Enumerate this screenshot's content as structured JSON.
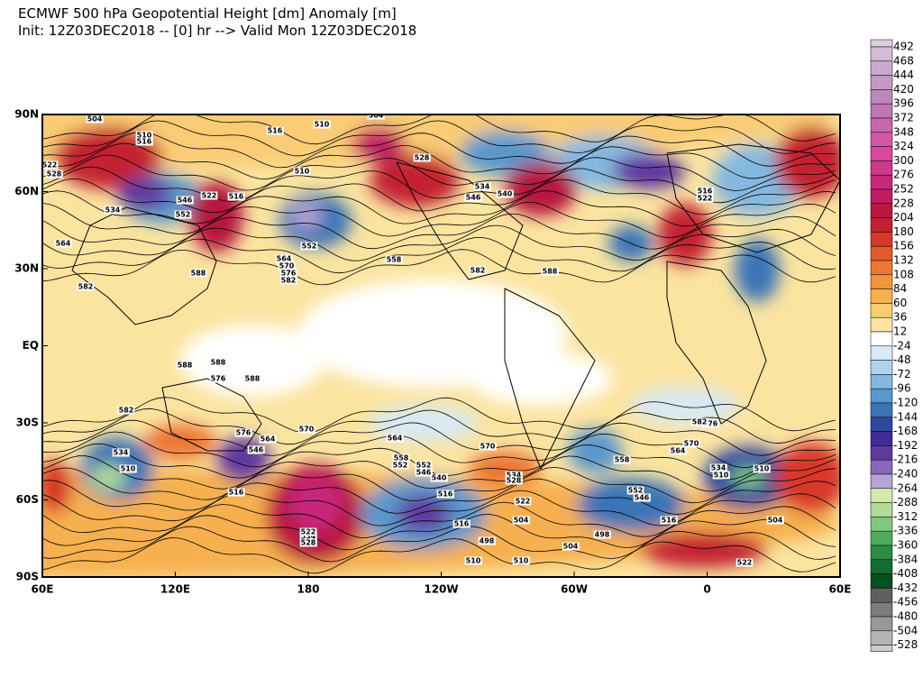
{
  "header": {
    "title": "ECMWF 500 hPa Geopotential Height [dm] Anomaly [m]",
    "subtitle": "Init: 12Z03DEC2018 -- [0] hr --> Valid Mon 12Z03DEC2018"
  },
  "map": {
    "lat_labels": [
      "90N",
      "60N",
      "30N",
      "EQ",
      "30S",
      "60S",
      "90S"
    ],
    "lon_labels": [
      "60E",
      "120E",
      "180",
      "120W",
      "60W",
      "0",
      "60E"
    ],
    "contour_labels": [
      "504",
      "510",
      "516",
      "522",
      "528",
      "534",
      "546",
      "552",
      "564",
      "522",
      "516",
      "510",
      "588",
      "516",
      "528",
      "552",
      "564",
      "570",
      "576",
      "582",
      "558",
      "504",
      "546",
      "582",
      "588",
      "510",
      "516",
      "522",
      "534",
      "540",
      "588",
      "576",
      "582",
      "588",
      "588",
      "582",
      "570",
      "564",
      "576",
      "570",
      "534",
      "510",
      "546",
      "552",
      "564",
      "510",
      "516",
      "516",
      "540",
      "558",
      "552",
      "546",
      "534",
      "528",
      "516",
      "522",
      "504",
      "498",
      "510",
      "504",
      "498",
      "576",
      "582",
      "564",
      "570",
      "558",
      "552",
      "546",
      "516",
      "534",
      "510",
      "504",
      "522",
      "510",
      "534",
      "528",
      "522"
    ]
  },
  "colorbar": {
    "labels": [
      "492",
      "468",
      "444",
      "420",
      "396",
      "372",
      "348",
      "324",
      "300",
      "276",
      "252",
      "228",
      "204",
      "180",
      "156",
      "132",
      "108",
      "84",
      "60",
      "36",
      "12",
      "-24",
      "-48",
      "-72",
      "-96",
      "-120",
      "-144",
      "-168",
      "-192",
      "-216",
      "-240",
      "-264",
      "-288",
      "-312",
      "-336",
      "-360",
      "-384",
      "-408",
      "-432",
      "-456",
      "-480",
      "-504",
      "-528"
    ],
    "colors": [
      "#dcd0dc",
      "#d4bcd4",
      "#cca8cc",
      "#c498c4",
      "#bc88bc",
      "#c078b4",
      "#c868ac",
      "#d058a4",
      "#d8489c",
      "#d0388c",
      "#c8287c",
      "#c01c64",
      "#b81840",
      "#c42030",
      "#d8382a",
      "#e45a2c",
      "#ec7634",
      "#f2943c",
      "#f6b050",
      "#f9cc74",
      "#fbe4a0",
      "#ffffff",
      "#d6e9f5",
      "#aed4ec",
      "#84b8e0",
      "#5a98cc",
      "#3a74b8",
      "#3048a0",
      "#402c94",
      "#6038a0",
      "#8868b8",
      "#b4a4d4",
      "#d4e8b0",
      "#b0dc98",
      "#80c880",
      "#50ac5c",
      "#2c8c44",
      "#146c30",
      "#045020",
      "#606060",
      "#7c7c7c",
      "#989898",
      "#b4b4b4",
      "#cccccc"
    ]
  }
}
